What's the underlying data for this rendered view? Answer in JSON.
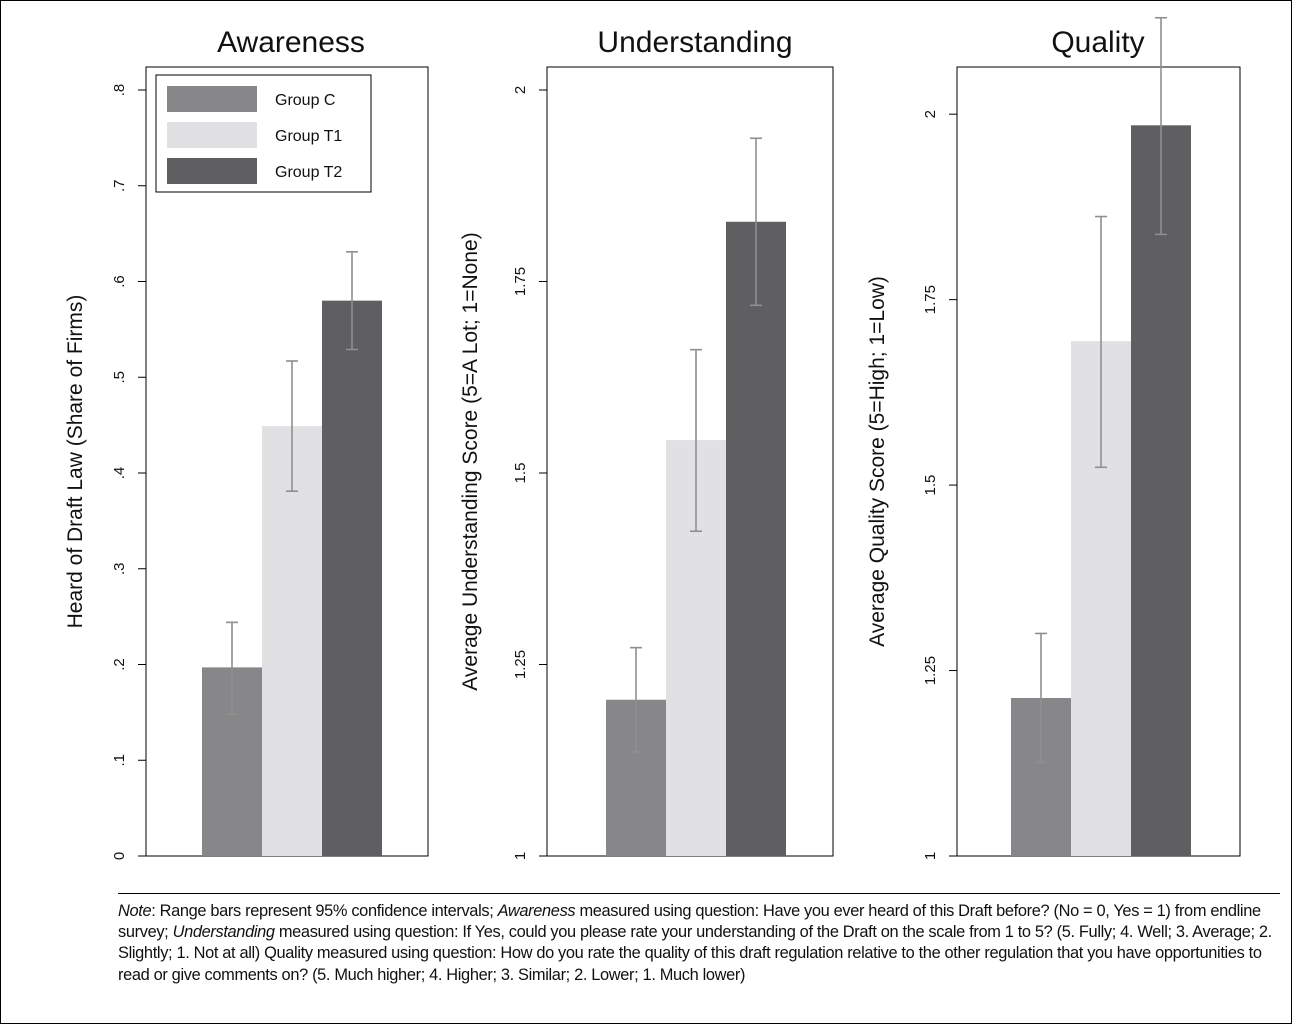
{
  "colors": {
    "background": "#ffffff",
    "group_c": "#878789",
    "group_t1": "#e1e1e3",
    "group_t2": "#5f5f61",
    "error_bar": "#8f8f8f",
    "axis": "#000000"
  },
  "chart_data": [
    {
      "type": "bar",
      "title": "Awareness",
      "ylabel": "Heard of Draft Law (Share of Firms)",
      "xlabel": "",
      "ylim": [
        0,
        0.8
      ],
      "yticks": [
        0,
        0.1,
        0.2,
        0.3,
        0.4,
        0.5,
        0.6,
        0.7,
        0.8
      ],
      "ytick_labels": [
        "0",
        ".1",
        ".2",
        ".3",
        ".4",
        ".5",
        ".6",
        ".7",
        ".8"
      ],
      "grid": false,
      "legend": "top-left",
      "categories": [
        "Group C",
        "Group T1",
        "Group T2"
      ],
      "values": [
        0.197,
        0.449,
        0.58
      ],
      "ci_low": [
        0.148,
        0.381,
        0.529
      ],
      "ci_high": [
        0.244,
        0.517,
        0.631
      ]
    },
    {
      "type": "bar",
      "title": "Understanding",
      "ylabel": "Average Understanding Score (5=A Lot; 1=None)",
      "xlabel": "",
      "ylim": [
        1,
        2
      ],
      "yticks": [
        1,
        1.25,
        1.5,
        1.75,
        2
      ],
      "ytick_labels": [
        "1",
        "1.25",
        "1.5",
        "1.75",
        "2"
      ],
      "grid": false,
      "categories": [
        "Group C",
        "Group T1",
        "Group T2"
      ],
      "values": [
        1.204,
        1.543,
        1.828
      ],
      "ci_low": [
        1.136,
        1.424,
        1.719
      ],
      "ci_high": [
        1.272,
        1.661,
        1.937
      ]
    },
    {
      "type": "bar",
      "title": "Quality",
      "ylabel": "Average Quality Score (5=High; 1=Low)",
      "xlabel": "",
      "ylim": [
        1,
        2.1
      ],
      "yticks": [
        1,
        1.25,
        1.5,
        1.75,
        2
      ],
      "ytick_labels": [
        "1",
        "1.25",
        "1.5",
        "1.75",
        "2"
      ],
      "grid": false,
      "categories": [
        "Group C",
        "Group T1",
        "Group T2"
      ],
      "values": [
        1.213,
        1.694,
        1.985
      ],
      "ci_low": [
        1.126,
        1.524,
        1.838
      ],
      "ci_high": [
        1.3,
        1.862,
        2.13
      ]
    }
  ],
  "legend": {
    "entries": [
      "Group C",
      "Group T1",
      "Group T2"
    ]
  },
  "note": {
    "label": "Note",
    "part1": ": Range bars represent 95% confidence intervals; ",
    "awareness": "Awareness",
    "part2": " measured using question: Have you ever heard of this Draft before? (No = 0, Yes = 1) from endline survey; ",
    "understanding": "Understanding",
    "part3": " measured using question: If Yes, could you please rate your understanding of the Draft on the scale from 1 to 5? (5. Fully; 4. Well; 3. Average; 2. Slightly; 1. Not at all) Quality measured using question: How do you rate the quality of this draft regulation relative to the other regulation that you have opportunities to read or give comments on? (5. Much higher; 4. Higher; 3. Similar; 2. Lower; 1. Much lower)"
  }
}
